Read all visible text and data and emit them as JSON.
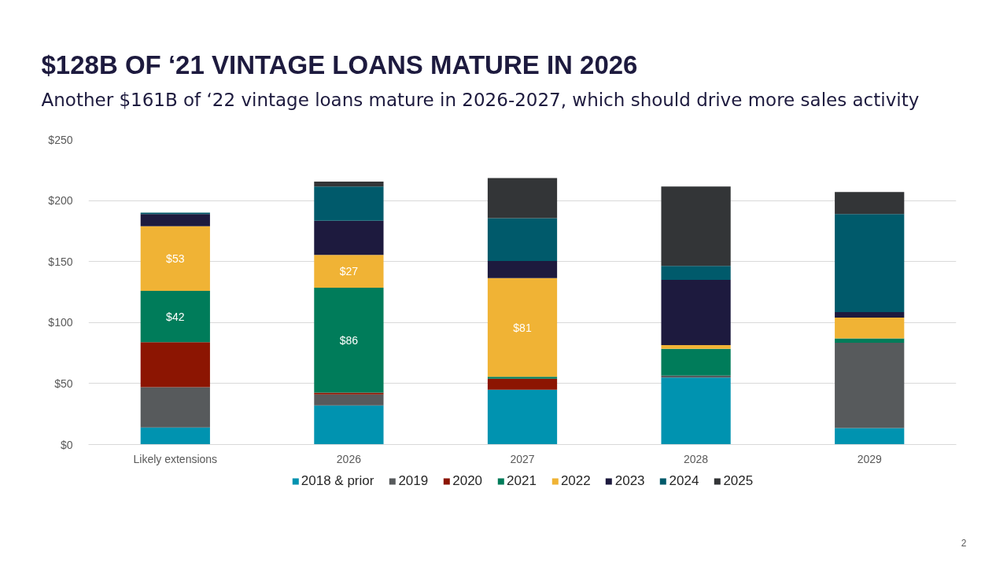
{
  "chart_data": {
    "type": "bar",
    "title": "$128B OF ‘21 VINTAGE LOANS MATURE IN 2026",
    "subtitle": "Another $161B of ‘22 vintage loans mature in 2026-2027, which should drive more sales activity",
    "annotations": [
      "2"
    ],
    "categories": [
      "Likely extensions",
      "2026",
      "2027",
      "2028",
      "2029"
    ],
    "stacked": true,
    "series": [
      {
        "name": "2018 & prior",
        "color": "#0093b0",
        "values": [
          14,
          32,
          45,
          55,
          13.5
        ]
      },
      {
        "name": "2019",
        "color": "#575a5c",
        "values": [
          33,
          9,
          null,
          1.5,
          70
        ]
      },
      {
        "name": "2020",
        "color": "#8c1502",
        "values": [
          37,
          1.5,
          9,
          null,
          null
        ]
      },
      {
        "name": "2021",
        "color": "#007c5a",
        "values": [
          42,
          86,
          1.5,
          22,
          3.5
        ],
        "value_labels": [
          "$42",
          "$86",
          null,
          null,
          null
        ]
      },
      {
        "name": "2022",
        "color": "#f0b335",
        "values": [
          53,
          27,
          81,
          3,
          17
        ],
        "value_labels": [
          "$53",
          "$27",
          "$81",
          null,
          null
        ]
      },
      {
        "name": "2023",
        "color": "#1d1a3e",
        "values": [
          10,
          28,
          14,
          53.5,
          4.5
        ]
      },
      {
        "name": "2024",
        "color": "#005a6b",
        "values": [
          1,
          28,
          35,
          11.5,
          80.5
        ]
      },
      {
        "name": "2025",
        "color": "#333537",
        "values": [
          null,
          4,
          33,
          65,
          18
        ]
      }
    ],
    "ylim": [
      0,
      250
    ],
    "yticks": [
      {
        "value": 0,
        "label": "$0"
      },
      {
        "value": 50,
        "label": "$50"
      },
      {
        "value": 100,
        "label": "$100"
      },
      {
        "value": 150,
        "label": "$150"
      },
      {
        "value": 200,
        "label": "$200"
      },
      {
        "value": 250,
        "label": "$250"
      }
    ],
    "grid": "y",
    "legend": "bottom"
  }
}
